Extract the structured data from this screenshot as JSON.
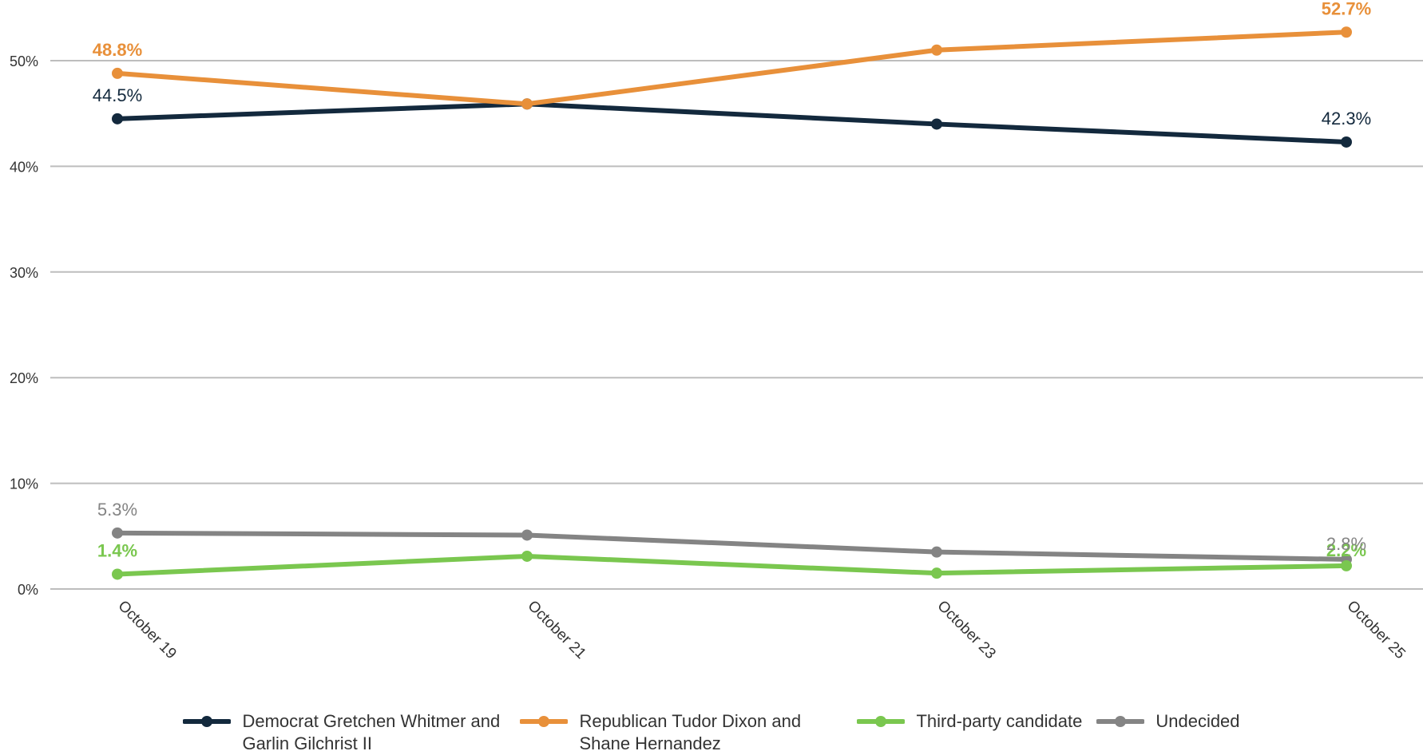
{
  "chart_data": {
    "type": "line",
    "title": "",
    "xlabel": "",
    "ylabel": "",
    "categories": [
      "October 19",
      "October 21",
      "October 23",
      "October 25"
    ],
    "ylim": [
      0,
      55
    ],
    "yticks": [
      0,
      10,
      20,
      30,
      40,
      50
    ],
    "ytick_labels": [
      "0%",
      "10%",
      "20%",
      "30%",
      "40%",
      "50%"
    ],
    "grid": true,
    "legend_position": "bottom",
    "series": [
      {
        "name": "Democrat Gretchen Whitmer and Garlin Gilchrist II",
        "color": "#13293d",
        "values": [
          44.5,
          45.9,
          44.0,
          42.3
        ],
        "labels": [
          "44.5%",
          "",
          "",
          "42.3%"
        ]
      },
      {
        "name": "Republican Tudor Dixon and Shane Hernandez",
        "color": "#e8903a",
        "values": [
          48.8,
          45.9,
          51.0,
          52.7
        ],
        "labels": [
          "48.8%",
          "",
          "",
          "52.7%"
        ]
      },
      {
        "name": "Third-party candidate",
        "color": "#7ac74f",
        "values": [
          1.4,
          3.1,
          1.5,
          2.2
        ],
        "labels": [
          "1.4%",
          "",
          "",
          "2.2%"
        ]
      },
      {
        "name": "Undecided",
        "color": "#848484",
        "values": [
          5.3,
          5.1,
          3.5,
          2.8
        ],
        "labels": [
          "5.3%",
          "",
          "",
          "2.8%"
        ]
      }
    ]
  }
}
